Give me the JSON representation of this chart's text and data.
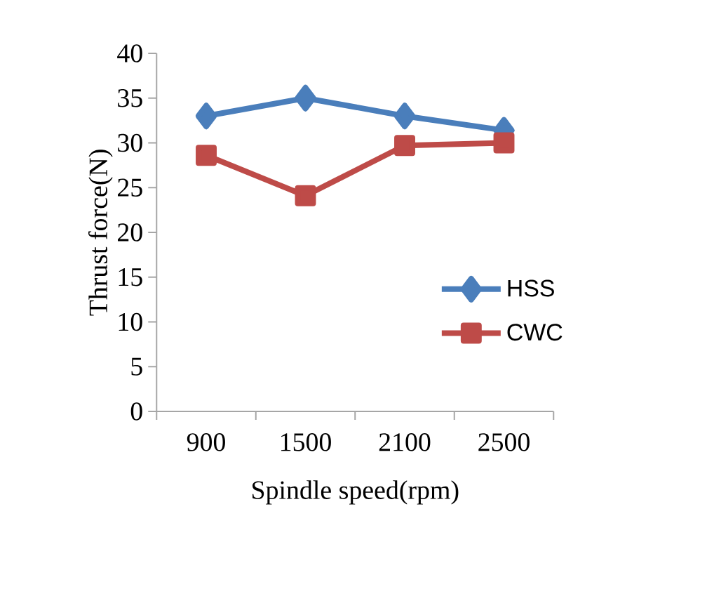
{
  "chart_data": {
    "type": "line",
    "xlabel": "Spindle speed(rpm)",
    "ylabel": "Thrust force(N)",
    "categories": [
      "900",
      "1500",
      "2100",
      "2500"
    ],
    "series": [
      {
        "name": "HSS",
        "color": "#4a7ebb",
        "marker": "diamond",
        "values": [
          33.0,
          35.0,
          33.0,
          31.4
        ]
      },
      {
        "name": "CWC",
        "color": "#be4b48",
        "marker": "square",
        "values": [
          28.6,
          24.1,
          29.7,
          30.0
        ]
      }
    ],
    "ylim": [
      0,
      40
    ],
    "yticks": [
      0,
      5,
      10,
      15,
      20,
      25,
      30,
      35,
      40
    ],
    "grid": false,
    "legend": "right"
  }
}
